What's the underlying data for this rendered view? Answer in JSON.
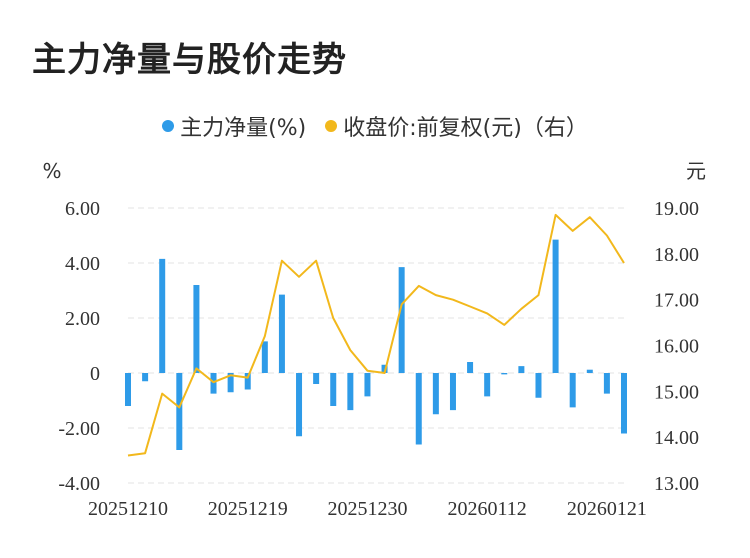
{
  "title": "主力净量与股价走势",
  "legend": {
    "net": "主力净量(%)",
    "price": "收盘价:前复权(元)（右）"
  },
  "colors": {
    "bar": "#2e9be8",
    "line": "#f2b81c",
    "grid": "#e3e3e3",
    "text": "#333333"
  },
  "chart_data": {
    "type": "bar+line",
    "title": "主力净量与股价走势",
    "left_unit": "%",
    "right_unit": "元",
    "left_axis": {
      "min": -4,
      "max": 6,
      "ticks": [
        "-4.00",
        "-2.00",
        "0",
        "2.00",
        "4.00",
        "6.00"
      ],
      "tick_values": [
        -4,
        -2,
        0,
        2,
        4,
        6
      ]
    },
    "right_axis": {
      "min": 13,
      "max": 19,
      "ticks": [
        "13.00",
        "14.00",
        "15.00",
        "16.00",
        "17.00",
        "18.00",
        "19.00"
      ],
      "tick_values": [
        13,
        14,
        15,
        16,
        17,
        18,
        19
      ]
    },
    "x_tick_labels": [
      {
        "index": 0,
        "label": "20251210"
      },
      {
        "index": 7,
        "label": "20251219"
      },
      {
        "index": 14,
        "label": "20251230"
      },
      {
        "index": 21,
        "label": "20260112"
      },
      {
        "index": 28,
        "label": "20260121"
      }
    ],
    "series": [
      {
        "name": "主力净量(%)",
        "type": "bar",
        "axis": "left",
        "values": [
          -1.2,
          -0.3,
          4.15,
          -2.8,
          3.2,
          -0.75,
          -0.7,
          -0.6,
          1.15,
          2.85,
          -2.3,
          -0.4,
          -1.2,
          -1.35,
          -0.85,
          0.3,
          3.85,
          -2.6,
          -1.5,
          -1.35,
          0.4,
          -0.85,
          -0.05,
          0.25,
          -0.9,
          4.85,
          -1.25,
          0.12,
          -0.75,
          -2.2
        ]
      },
      {
        "name": "收盘价:前复权(元)（右）",
        "type": "line",
        "axis": "right",
        "values": [
          13.6,
          13.65,
          14.95,
          14.65,
          15.5,
          15.2,
          15.35,
          15.3,
          16.2,
          17.85,
          17.5,
          17.85,
          16.6,
          15.9,
          15.45,
          15.4,
          16.9,
          17.3,
          17.1,
          17.0,
          16.85,
          16.7,
          16.45,
          16.8,
          17.1,
          18.85,
          18.5,
          18.8,
          18.4,
          17.8
        ]
      }
    ]
  }
}
